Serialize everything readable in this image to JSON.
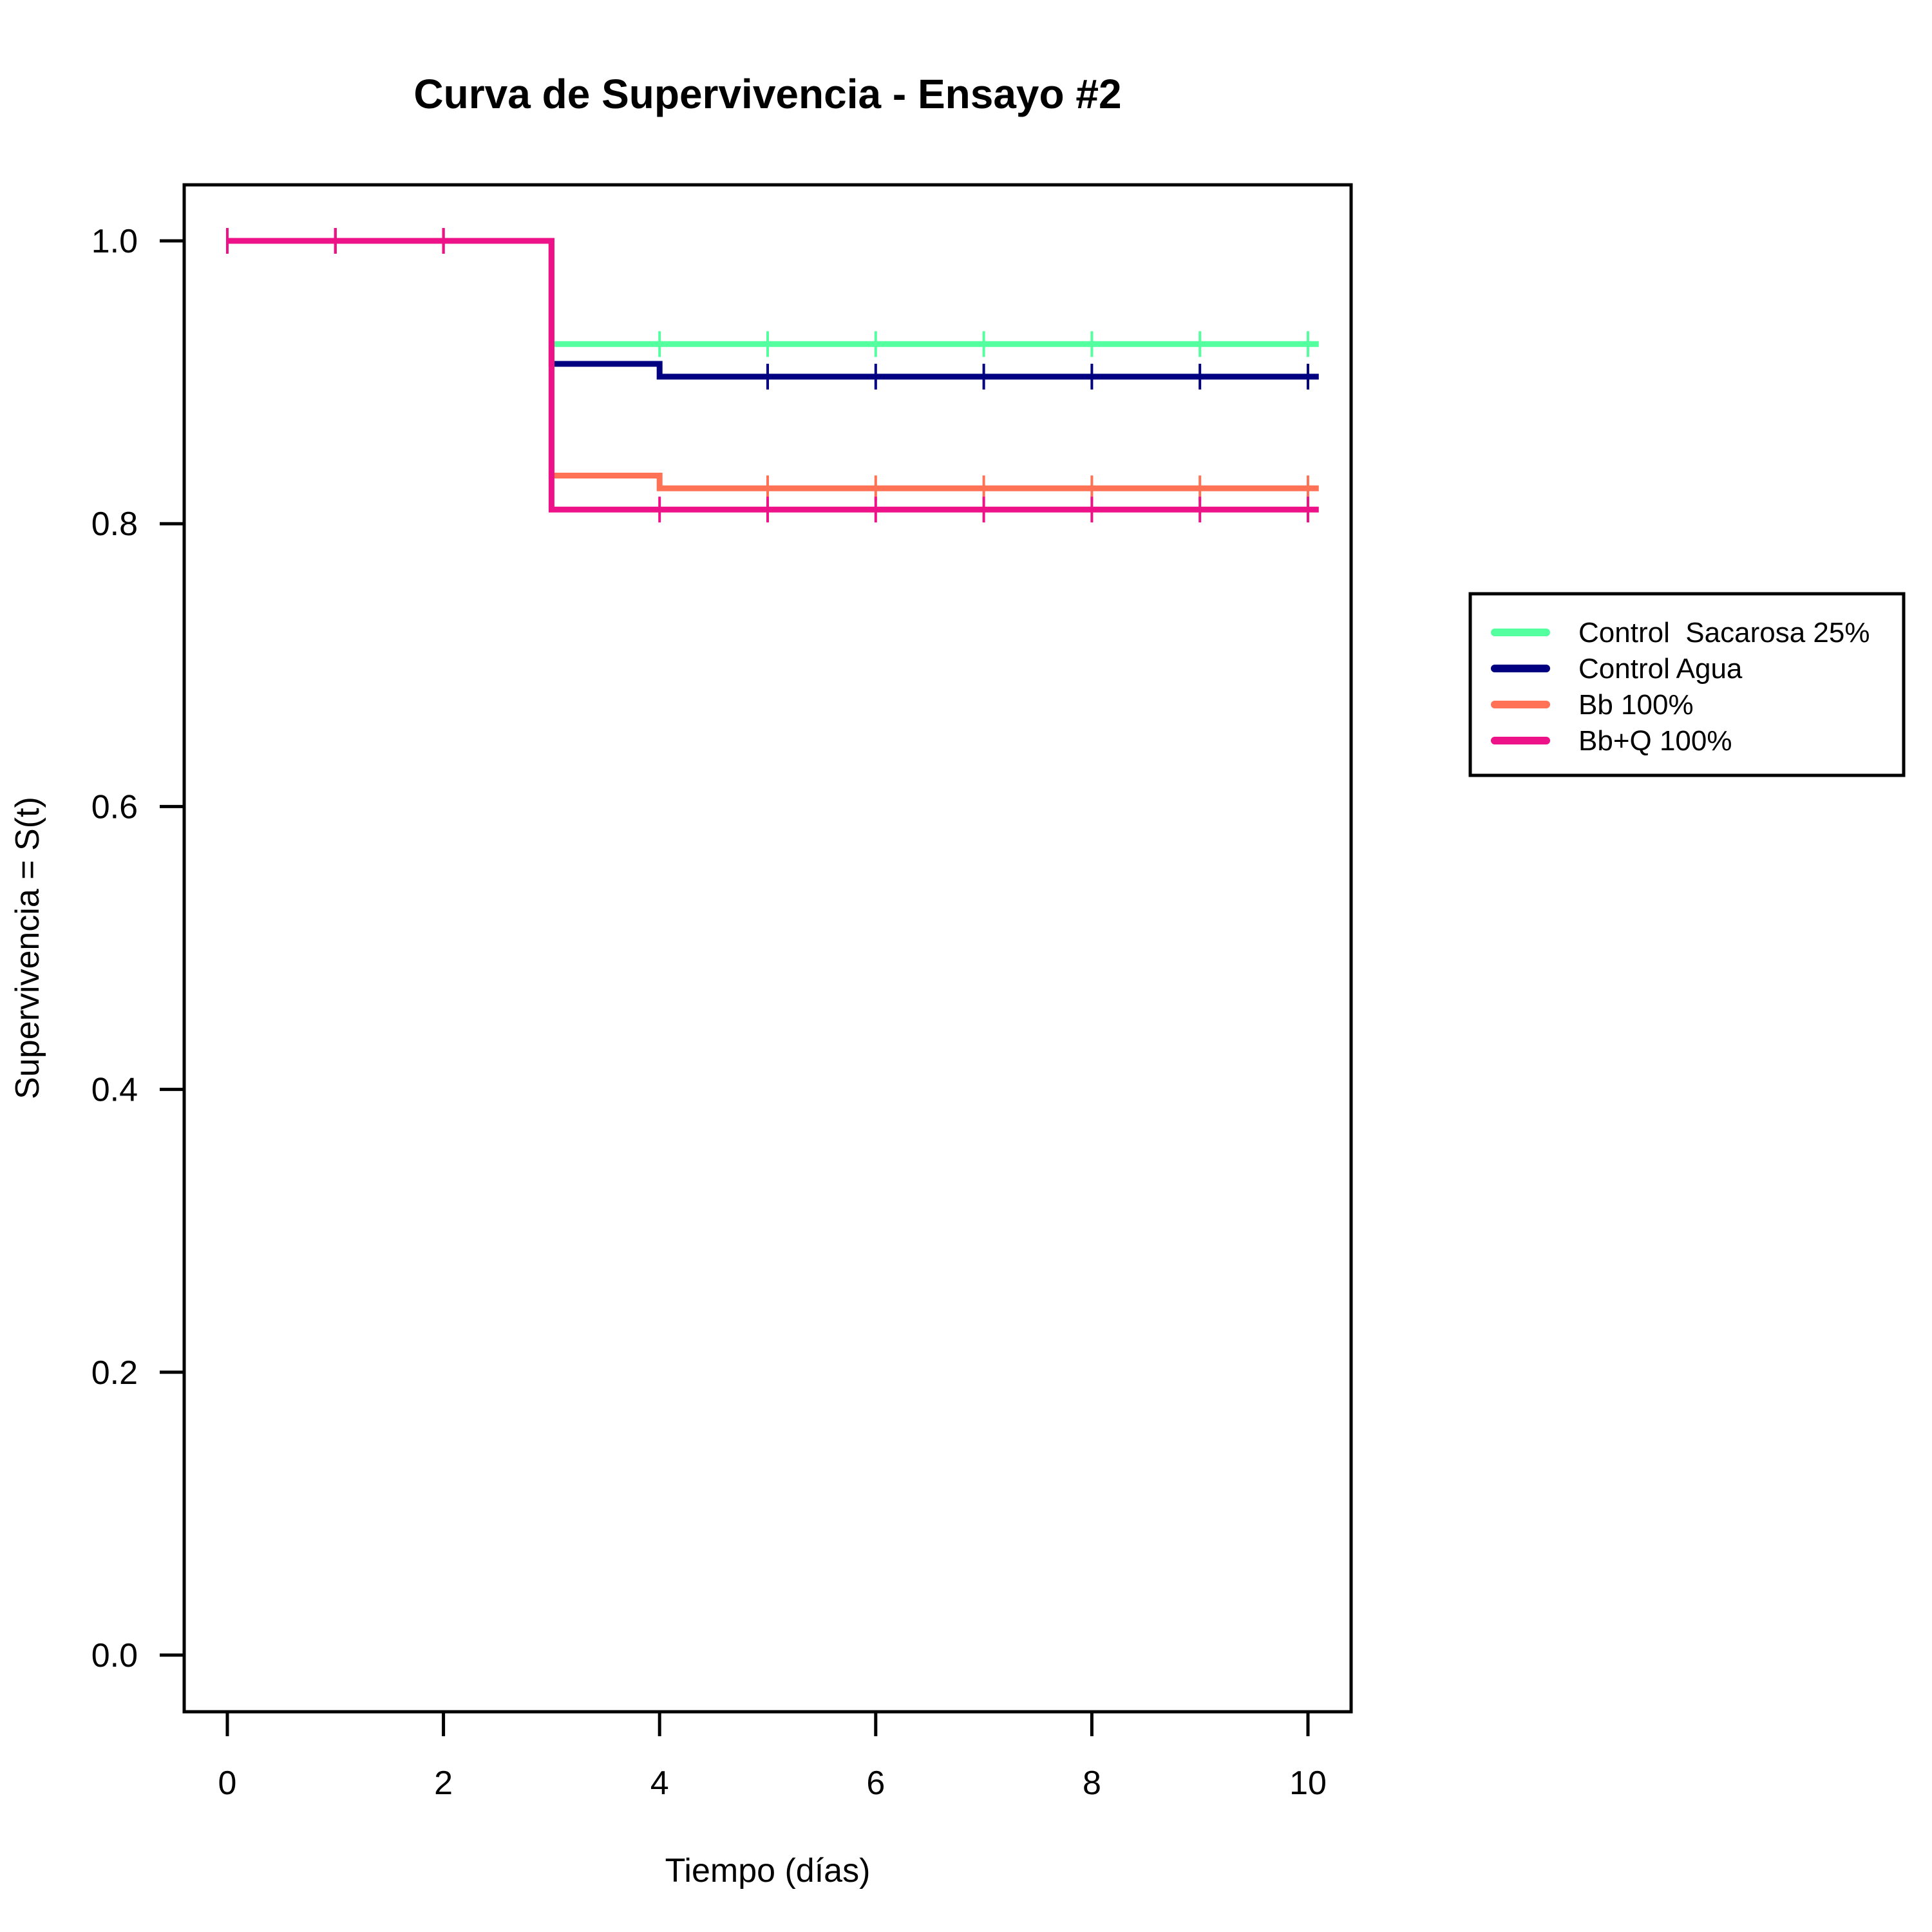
{
  "chart_data": {
    "type": "line",
    "step": true,
    "title": "Curva de Supervivencia - Ensayo #2",
    "xlabel": "Tiempo (días)",
    "ylabel": "Supervivencia = S(t)",
    "xlim": [
      0,
      10
    ],
    "ylim": [
      0,
      1
    ],
    "x_ticks": [
      0,
      2,
      4,
      6,
      8,
      10
    ],
    "x_tick_labels": [
      "0",
      "2",
      "4",
      "6",
      "8",
      "10"
    ],
    "y_ticks": [
      0,
      0.2,
      0.4,
      0.6,
      0.8,
      1.0
    ],
    "y_tick_labels": [
      "0.0",
      "0.2",
      "0.4",
      "0.6",
      "0.8",
      "1.0"
    ],
    "grid": false,
    "legend_position": "right",
    "series": [
      {
        "name": "Control  Sacarosa 25%",
        "color": "#54FF9F",
        "x": [
          0,
          3,
          10.1
        ],
        "y": [
          1.0,
          0.927,
          0.927
        ],
        "censor_x": [
          0,
          1,
          2,
          4,
          5,
          6,
          7,
          8,
          9,
          10
        ]
      },
      {
        "name": "Control Agua",
        "color": "#000080",
        "x": [
          0,
          3,
          4,
          10.1
        ],
        "y": [
          1.0,
          0.913,
          0.904,
          0.904
        ],
        "censor_x": [
          0,
          1,
          2,
          5,
          6,
          7,
          8,
          9,
          10
        ]
      },
      {
        "name": "Bb 100%",
        "color": "#FF7256",
        "x": [
          0,
          3,
          4,
          10.1
        ],
        "y": [
          1.0,
          0.834,
          0.825,
          0.825
        ],
        "censor_x": [
          0,
          1,
          2,
          5,
          6,
          7,
          8,
          9,
          10
        ]
      },
      {
        "name": "Bb+Q 100%",
        "color": "#EE1289",
        "x": [
          0,
          3,
          10.1
        ],
        "y": [
          1.0,
          0.81,
          0.81
        ],
        "censor_x": [
          0,
          1,
          2,
          4,
          5,
          6,
          7,
          8,
          9,
          10
        ]
      }
    ]
  }
}
